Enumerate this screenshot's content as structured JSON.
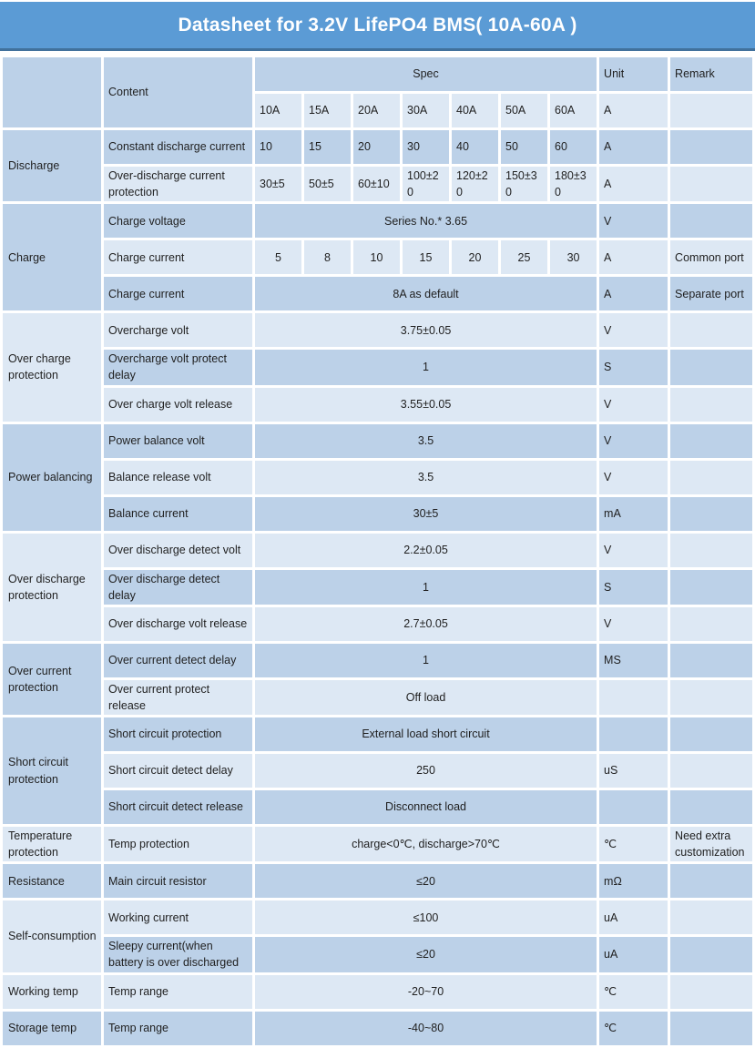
{
  "title": "Datasheet for 3.2V LifePO4 BMS( 10A-60A )",
  "colors": {
    "accent": "#5b9bd5",
    "accent_dark": "#41719c",
    "row_medium": "#bcd1e8",
    "row_light": "#dde8f4",
    "text": "#1f1f1f"
  },
  "header": {
    "content_label": "Content",
    "spec_label": "Spec",
    "unit_label": "Unit",
    "remark_label": "Remark",
    "spec_columns": [
      "10A",
      "15A",
      "20A",
      "30A",
      "40A",
      "50A",
      "60A"
    ],
    "unit_sub": "A"
  },
  "sections": [
    {
      "category": "Discharge",
      "rows": [
        {
          "content": "Constant discharge current",
          "spec_cells": [
            "10",
            "15",
            "20",
            "30",
            "40",
            "50",
            "60"
          ],
          "cell_align": "left",
          "unit": "A",
          "remark": ""
        },
        {
          "content": "Over-discharge current protection",
          "spec_cells": [
            "30±5",
            "50±5",
            "60±10",
            "100±20",
            "120±20",
            "150±30",
            "180±30"
          ],
          "cell_align": "left",
          "unit": "A",
          "remark": ""
        }
      ]
    },
    {
      "category": "Charge",
      "rows": [
        {
          "content": "Charge voltage",
          "spec": "Series No.* 3.65",
          "unit": "V",
          "remark": ""
        },
        {
          "content": "Charge current",
          "spec_cells": [
            "5",
            "8",
            "10",
            "15",
            "20",
            "25",
            "30"
          ],
          "cell_align": "center",
          "unit": "A",
          "remark": "Common port"
        },
        {
          "content": "Charge current",
          "spec": "8A as default",
          "unit": "A",
          "remark": "Separate port"
        }
      ]
    },
    {
      "category": "Over charge protection",
      "rows": [
        {
          "content": "Overcharge volt",
          "spec": "3.75±0.05",
          "unit": "V",
          "remark": ""
        },
        {
          "content": "Overcharge volt protect delay",
          "spec": "1",
          "unit": "S",
          "remark": ""
        },
        {
          "content": "Over charge volt release",
          "spec": "3.55±0.05",
          "unit": "V",
          "remark": ""
        }
      ]
    },
    {
      "category": "Power balancing",
      "rows": [
        {
          "content": "Power balance volt",
          "spec": "3.5",
          "unit": "V",
          "remark": ""
        },
        {
          "content": "Balance release volt",
          "spec": "3.5",
          "unit": "V",
          "remark": ""
        },
        {
          "content": "Balance current",
          "spec": "30±5",
          "unit": "mA",
          "remark": ""
        }
      ]
    },
    {
      "category": "Over discharge protection",
      "rows": [
        {
          "content": "Over discharge detect volt",
          "spec": "2.2±0.05",
          "unit": "V",
          "remark": ""
        },
        {
          "content": "Over discharge detect delay",
          "spec": "1",
          "unit": "S",
          "remark": ""
        },
        {
          "content": "Over discharge volt release",
          "spec": "2.7±0.05",
          "unit": "V",
          "remark": ""
        }
      ]
    },
    {
      "category": "Over  current protection",
      "rows": [
        {
          "content": "Over current detect delay",
          "spec": "1",
          "unit": "MS",
          "remark": ""
        },
        {
          "content": "Over current protect release",
          "spec": "Off load",
          "unit": "",
          "remark": ""
        }
      ]
    },
    {
      "category": "Short circuit protection",
      "rows": [
        {
          "content": "Short circuit protection",
          "spec": "External load short circuit",
          "unit": "",
          "remark": ""
        },
        {
          "content": "Short circuit detect delay",
          "spec": "250",
          "unit": "uS",
          "remark": ""
        },
        {
          "content": "Short circuit detect release",
          "spec": "Disconnect load",
          "unit": "",
          "remark": ""
        }
      ]
    },
    {
      "category": "Temperature protection",
      "rows": [
        {
          "content": "Temp protection",
          "spec": "charge<0℃, discharge>70℃",
          "unit": "℃",
          "remark": "Need extra customization"
        }
      ]
    },
    {
      "category": "Resistance",
      "rows": [
        {
          "content": "Main circuit resistor",
          "spec": "≤20",
          "unit": "mΩ",
          "remark": ""
        }
      ]
    },
    {
      "category": "Self-consumption",
      "rows": [
        {
          "content": "Working current",
          "spec": "≤100",
          "unit": "uA",
          "remark": ""
        },
        {
          "content": "Sleepy current(when battery is over discharged",
          "spec": "≤20",
          "unit": "uA",
          "remark": ""
        }
      ]
    },
    {
      "category": "Working temp",
      "rows": [
        {
          "content": "Temp range",
          "spec": "-20~70",
          "unit": "℃",
          "remark": ""
        }
      ]
    },
    {
      "category": "Storage temp",
      "rows": [
        {
          "content": "Temp range",
          "spec": "-40~80",
          "unit": "℃",
          "remark": ""
        }
      ]
    }
  ]
}
